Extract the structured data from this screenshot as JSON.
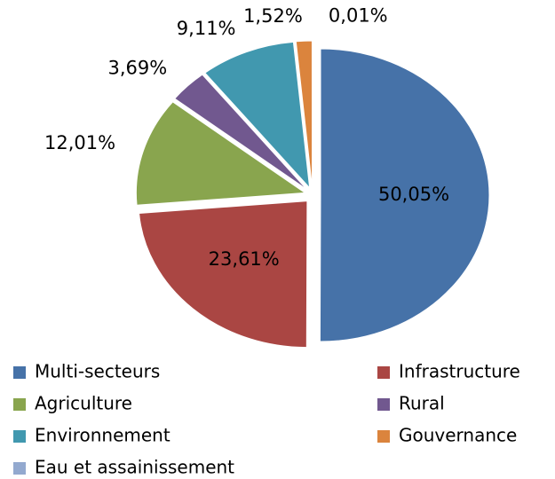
{
  "chart_data": {
    "type": "pie",
    "categories": [
      "Multi-secteurs",
      "Infrastructure",
      "Agriculture",
      "Rural",
      "Environnement",
      "Gouvernance",
      "Eau et assainissement"
    ],
    "values": [
      50.05,
      23.61,
      12.01,
      3.69,
      9.11,
      1.52,
      0.01
    ],
    "value_labels": [
      "50,05%",
      "23,61%",
      "12,01%",
      "3,69%",
      "9,11%",
      "1,52%",
      "0,01%"
    ],
    "colors": [
      "#4672a8",
      "#aa4643",
      "#89a54e",
      "#71588f",
      "#4198af",
      "#db843d",
      "#93a9cf"
    ],
    "legend": "bottom"
  }
}
